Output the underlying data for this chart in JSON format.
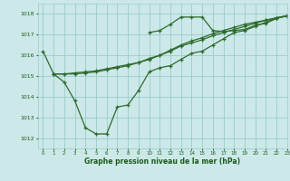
{
  "bg_color": "#cce8e8",
  "grid_color": "#99cccc",
  "line_color": "#2d6b2d",
  "text_color": "#1a5c1a",
  "xlabel": "Graphe pression niveau de la mer (hPa)",
  "ylim": [
    1011.5,
    1018.5
  ],
  "xlim": [
    -0.5,
    23
  ],
  "yticks": [
    1012,
    1013,
    1014,
    1015,
    1016,
    1017,
    1018
  ],
  "xticks": [
    0,
    1,
    2,
    3,
    4,
    5,
    6,
    7,
    8,
    9,
    10,
    11,
    12,
    13,
    14,
    15,
    16,
    17,
    18,
    19,
    20,
    21,
    22,
    23
  ],
  "series1_x": [
    0,
    1,
    2,
    3,
    4,
    5,
    6,
    7,
    8,
    9,
    10,
    11,
    12,
    13,
    14,
    15,
    16,
    17,
    18,
    19,
    20,
    21,
    22,
    23
  ],
  "series1_y": [
    1016.2,
    1015.1,
    1014.7,
    1013.8,
    1012.5,
    1012.2,
    1012.2,
    1013.5,
    1013.6,
    1014.3,
    1015.2,
    1015.4,
    1015.5,
    1015.8,
    1016.1,
    1016.2,
    1016.5,
    1016.8,
    1017.1,
    1017.2,
    1017.4,
    1017.6,
    1017.8,
    1017.9
  ],
  "series2_x": [
    1,
    2,
    3,
    4,
    5,
    6,
    7,
    8,
    9,
    10,
    11,
    12,
    13,
    14,
    15,
    16,
    17,
    18,
    19,
    20,
    21,
    22,
    23
  ],
  "series2_y": [
    1015.1,
    1015.1,
    1015.15,
    1015.2,
    1015.25,
    1015.35,
    1015.45,
    1015.55,
    1015.65,
    1015.85,
    1016.0,
    1016.2,
    1016.45,
    1016.6,
    1016.75,
    1016.95,
    1017.1,
    1017.25,
    1017.4,
    1017.55,
    1017.7,
    1017.8,
    1017.9
  ],
  "series3_x": [
    1,
    2,
    3,
    4,
    5,
    6,
    7,
    8,
    9,
    10,
    11,
    12,
    13,
    14,
    15,
    16,
    17,
    18,
    19,
    20,
    21,
    22,
    23
  ],
  "series3_y": [
    1015.1,
    1015.1,
    1015.1,
    1015.15,
    1015.2,
    1015.3,
    1015.4,
    1015.5,
    1015.65,
    1015.8,
    1016.0,
    1016.25,
    1016.5,
    1016.7,
    1016.85,
    1017.05,
    1017.2,
    1017.35,
    1017.5,
    1017.6,
    1017.7,
    1017.82,
    1017.92
  ],
  "series4_x": [
    10,
    11,
    12,
    13,
    14,
    15,
    16,
    17,
    18,
    19,
    20,
    21,
    22,
    23
  ],
  "series4_y": [
    1017.1,
    1017.2,
    1017.5,
    1017.85,
    1017.85,
    1017.85,
    1017.2,
    1017.15,
    1017.2,
    1017.25,
    1017.45,
    1017.55,
    1017.78,
    1017.92
  ]
}
